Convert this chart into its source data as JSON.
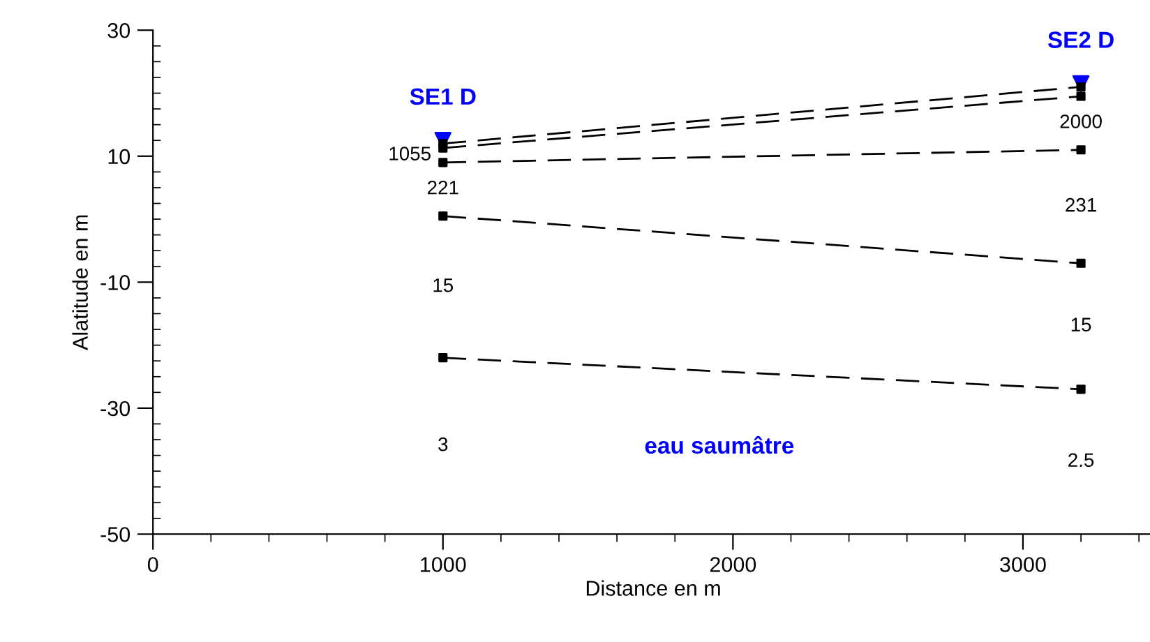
{
  "chart_data": {
    "type": "line",
    "xlabel": "Distance en m",
    "ylabel": "Alatitude en m",
    "x": [
      1000,
      3200
    ],
    "xlim": [
      0,
      3450
    ],
    "xticks": [
      0,
      1000,
      2000,
      3000
    ],
    "ylim": [
      -50,
      30
    ],
    "yticks": [
      30,
      10,
      -10,
      -30,
      -50
    ],
    "grid": false,
    "legend": false,
    "marker": "square",
    "line_style": "dashed",
    "series": [
      {
        "values": [
          12,
          21
        ],
        "color": "#000000"
      },
      {
        "values": [
          11.3,
          19.5
        ],
        "color": "#000000"
      },
      {
        "values": [
          9,
          11
        ],
        "color": "#000000"
      },
      {
        "values": [
          0.5,
          -7
        ],
        "color": "#000000"
      },
      {
        "values": [
          -22,
          -27
        ],
        "color": "#000000"
      },
      {
        "type": "scatter",
        "marker": "triangle",
        "values": [
          12.5,
          21.5
        ],
        "color": "#0000ff"
      }
    ],
    "annotations": [
      "SE1 D",
      "SE2 D",
      "1055",
      "221",
      "15",
      "3",
      "2000",
      "231",
      "15",
      "2.5",
      "eau saumâtre"
    ]
  }
}
